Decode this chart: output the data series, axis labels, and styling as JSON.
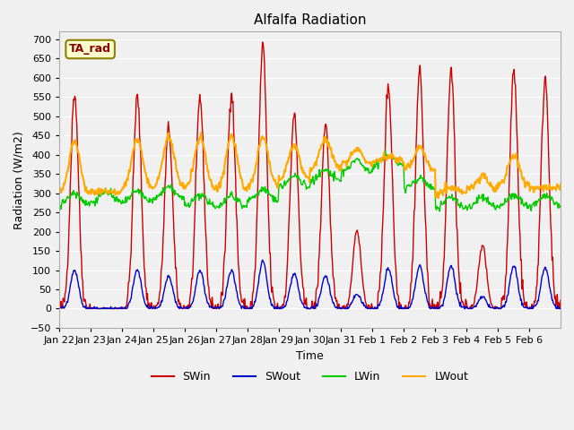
{
  "title": "Alfalfa Radiation",
  "ylabel": "Radiation (W/m2)",
  "xlabel": "Time",
  "ylim": [
    -50,
    720
  ],
  "yticks": [
    -50,
    0,
    50,
    100,
    150,
    200,
    250,
    300,
    350,
    400,
    450,
    500,
    550,
    600,
    650,
    700
  ],
  "annotation_text": "TA_rad",
  "plot_bg": "#f0f0f0",
  "colors": {
    "SWin": "#cc0000",
    "SWout": "#0000cc",
    "LWin": "#00cc00",
    "LWout": "#ffaa00"
  },
  "xtick_labels": [
    "Jan 22",
    "Jan 23",
    "Jan 24",
    "Jan 25",
    "Jan 26",
    "Jan 27",
    "Jan 28",
    "Jan 29",
    "Jan 30",
    "Jan 31",
    "Feb 1",
    "Feb 2",
    "Feb 3",
    "Feb 4",
    "Feb 5",
    "Feb 6"
  ],
  "n_days": 16,
  "pts_per_day": 48
}
